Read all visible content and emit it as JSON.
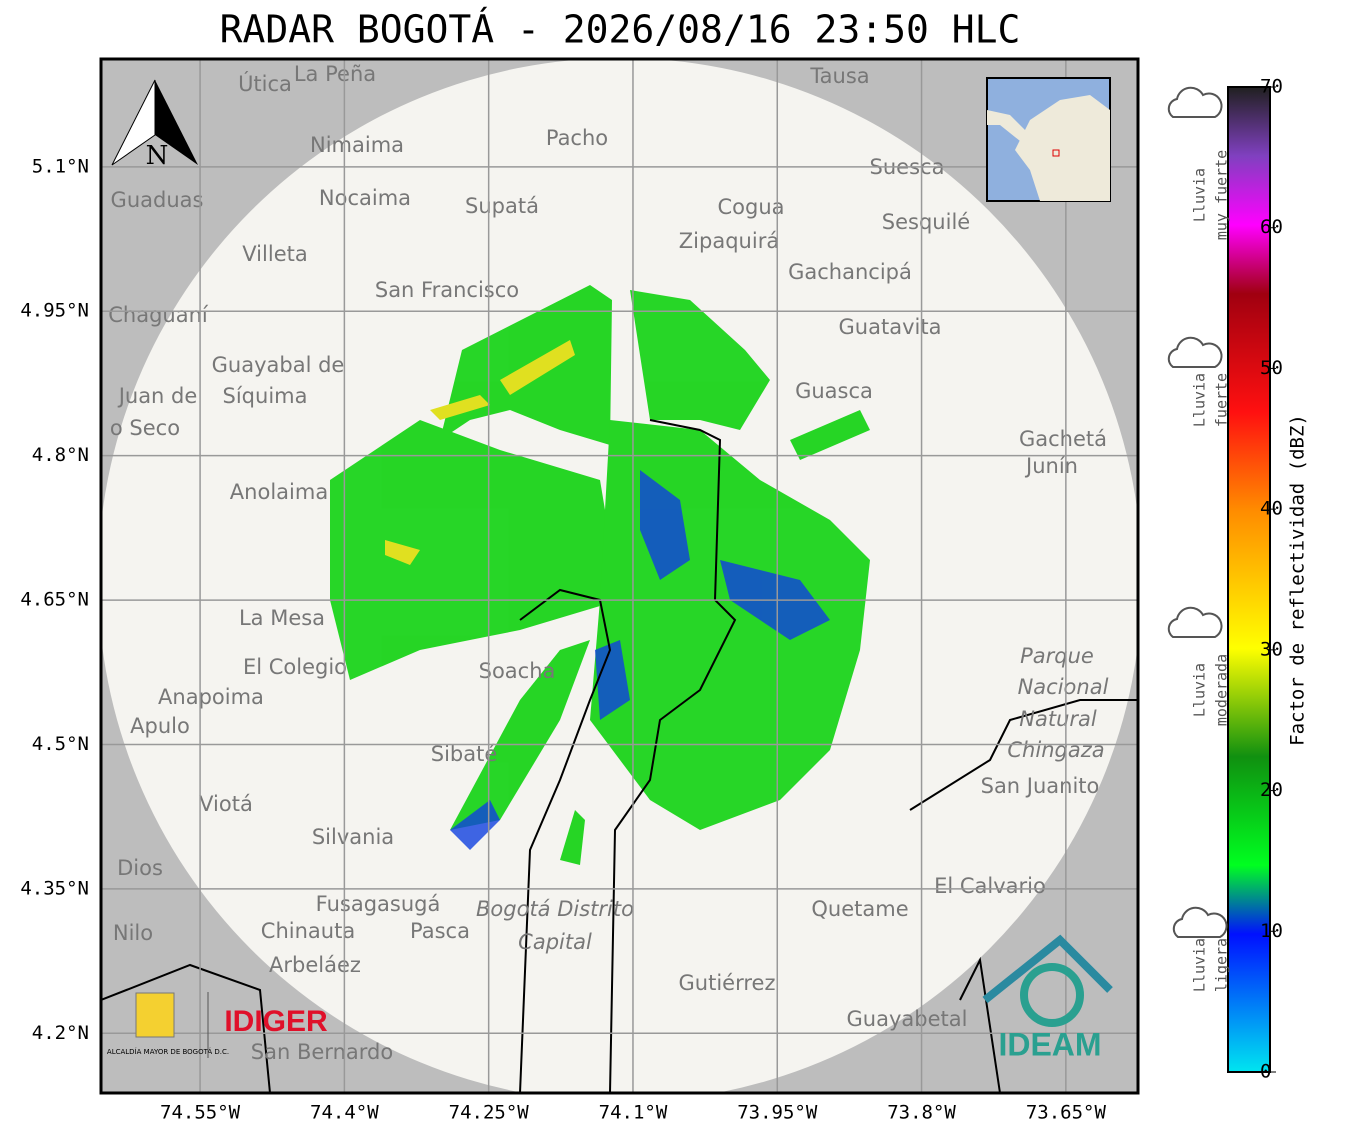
{
  "title": "RADAR BOGOTÁ - 2026/08/16 23:50 HLC",
  "map": {
    "xlim": [
      -74.653,
      -73.575
    ],
    "ylim": [
      4.138,
      5.212
    ],
    "xticks": [
      {
        "value": -74.55,
        "label": "74.55°W"
      },
      {
        "value": -74.4,
        "label": "74.4°W"
      },
      {
        "value": -74.25,
        "label": "74.25°W"
      },
      {
        "value": -74.1,
        "label": "74.1°W"
      },
      {
        "value": -73.95,
        "label": "73.95°W"
      },
      {
        "value": -73.8,
        "label": "73.8°W"
      },
      {
        "value": -73.65,
        "label": "73.65°W"
      }
    ],
    "yticks": [
      {
        "value": 5.1,
        "label": "5.1°N"
      },
      {
        "value": 4.95,
        "label": "4.95°N"
      },
      {
        "value": 4.8,
        "label": "4.8°N"
      },
      {
        "value": 4.65,
        "label": "4.65°N"
      },
      {
        "value": 4.5,
        "label": "4.5°N"
      },
      {
        "value": 4.35,
        "label": "4.35°N"
      },
      {
        "value": 4.2,
        "label": "4.2°N"
      }
    ],
    "north": "N",
    "places": [
      "Útica",
      "La Peña",
      "Tausa",
      "Pacho",
      "Nimaima",
      "Guaduas",
      "Nocaima",
      "Supatá",
      "Cogua",
      "Suesca",
      "Sesquilé",
      "Zipaquirá",
      "Villeta",
      "Gachancipá",
      "San Francisco",
      "Chaguaní",
      "Guatavita",
      "Guayabal de",
      "Síquima",
      "Juan de",
      "o Seco",
      "Guasca",
      "Gachetá",
      "Junín",
      "Anolaima",
      "La Mesa",
      "El Colegio",
      "Soacha",
      "Parque",
      "Nacional",
      "Natural",
      "Chingaza",
      "Anapoima",
      "Apulo",
      "Sibaté",
      "San Juanito",
      "Viotá",
      "Silvania",
      "Dios",
      "El Calvario",
      "Fusagasugá",
      "Bogotá Distrito",
      "Capital",
      "Quetame",
      "Nilo",
      "Chinauta",
      "Pasca",
      "Arbeláez",
      "Gutiérrez",
      "Guayabetal",
      "San Bernardo"
    ],
    "logos": {
      "alcaldia": "ALCALDÍA MAYOR DE BOGOTÁ D.C.",
      "idiger": "IDIGER",
      "ideam": "IDEAM"
    }
  },
  "colorbar": {
    "label": "Factor de reflectividad (dBZ)",
    "lim": [
      0,
      70
    ],
    "ticks": [
      0,
      10,
      20,
      30,
      40,
      50,
      60,
      70
    ],
    "classes": [
      [
        "Lluvia",
        "ligera"
      ],
      [
        "Lluvia",
        "moderada"
      ],
      [
        "Lluvia",
        "fuerte"
      ],
      [
        "Lluvia",
        "muy fuerte"
      ]
    ]
  }
}
